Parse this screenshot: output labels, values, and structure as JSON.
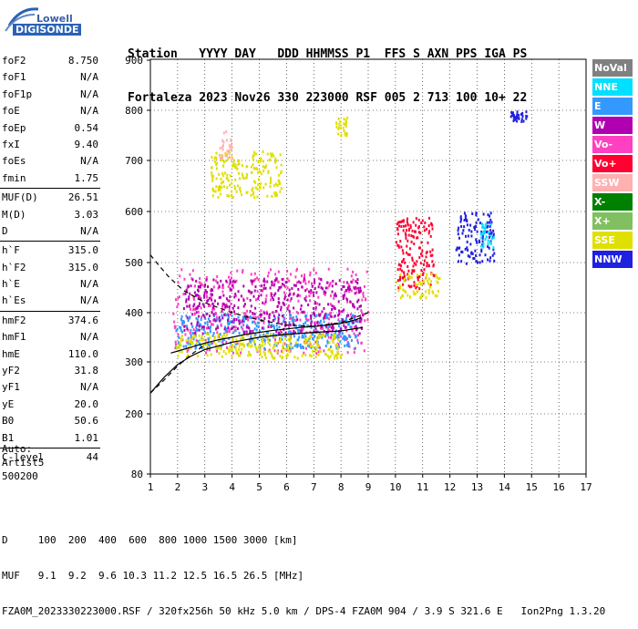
{
  "logo": {
    "line1": "Lowell",
    "line2": "DIGISONDE"
  },
  "header": {
    "labels": "Station   YYYY DAY   DDD HHMMSS P1  FFS S AXN PPS IGA PS",
    "values": "Fortaleza 2023 Nov26 330 223000 RSF 005 2 713 100 10+ 22"
  },
  "params": [
    {
      "k": "foF2",
      "v": "8.750"
    },
    {
      "k": "foF1",
      "v": "N/A"
    },
    {
      "k": "foF1p",
      "v": "N/A"
    },
    {
      "k": "foE",
      "v": "N/A"
    },
    {
      "k": "foEp",
      "v": "0.54"
    },
    {
      "k": "fxI",
      "v": "9.40"
    },
    {
      "k": "foEs",
      "v": "N/A"
    },
    {
      "k": "fmin",
      "v": "1.75"
    },
    {
      "sep": true
    },
    {
      "k": "MUF(D)",
      "v": "26.51"
    },
    {
      "k": "M(D)",
      "v": "3.03"
    },
    {
      "k": "D",
      "v": "N/A"
    },
    {
      "sep": true
    },
    {
      "k": "h`F",
      "v": "315.0"
    },
    {
      "k": "h`F2",
      "v": "315.0"
    },
    {
      "k": "h`E",
      "v": "N/A"
    },
    {
      "k": "h`Es",
      "v": "N/A"
    },
    {
      "sep": true
    },
    {
      "k": "hmF2",
      "v": "374.6"
    },
    {
      "k": "hmF1",
      "v": "N/A"
    },
    {
      "k": "hmE",
      "v": "110.0"
    },
    {
      "k": "yF2",
      "v": "31.8"
    },
    {
      "k": "yF1",
      "v": "N/A"
    },
    {
      "k": "yE",
      "v": "20.0"
    },
    {
      "k": "B0",
      "v": "50.6"
    },
    {
      "k": "B1",
      "v": "1.01"
    },
    {
      "sep": true
    },
    {
      "k": "C-level",
      "v": "44"
    }
  ],
  "auto": {
    "line1": "Auto:",
    "line2": "Artist5",
    "line3": "500200"
  },
  "legend": [
    {
      "label": "NoVal",
      "color": "#808080"
    },
    {
      "label": "NNE",
      "color": "#00e0ff"
    },
    {
      "label": "E",
      "color": "#3399ff"
    },
    {
      "label": "W",
      "color": "#b000b0"
    },
    {
      "label": "Vo-",
      "color": "#ff40c0"
    },
    {
      "label": "Vo+",
      "color": "#ff0030"
    },
    {
      "label": "SSW",
      "color": "#ffb0b0"
    },
    {
      "label": "X-",
      "color": "#008000"
    },
    {
      "label": "X+",
      "color": "#80c060"
    },
    {
      "label": "SSE",
      "color": "#e0e000"
    },
    {
      "label": "NNW",
      "color": "#2020e0"
    }
  ],
  "bottom": {
    "line1": "D     100  200  400  600  800 1000 1500 3000 [km]",
    "line2": "MUF   9.1  9.2  9.6 10.3 11.2 12.5 16.5 26.5 [MHz]",
    "line3": "FZA0M_2023330223000.RSF / 320fx256h 50 kHz 5.0 km / DPS-4 FZA0M 904 / 3.9 S 321.6 E   Ion2Png 1.3.20"
  },
  "chart_data": {
    "type": "scatter",
    "xlim": [
      1,
      17
    ],
    "ylim": [
      80,
      900
    ],
    "x_ticks": [
      1,
      2,
      3,
      4,
      5,
      6,
      7,
      8,
      9,
      10,
      11,
      12,
      13,
      14,
      15,
      16,
      17
    ],
    "y_ticks": [
      80,
      200,
      300,
      400,
      500,
      600,
      700,
      800,
      900
    ],
    "grid": true,
    "echo_clusters": [
      {
        "color": "#ff40c0",
        "x": [
          1.8,
          9.0
        ],
        "y": [
          320,
          490
        ]
      },
      {
        "color": "#3399ff",
        "x": [
          1.9,
          8.6
        ],
        "y": [
          330,
          400
        ]
      },
      {
        "color": "#b000b0",
        "x": [
          2.2,
          8.8
        ],
        "y": [
          360,
          470
        ]
      },
      {
        "color": "#e0e000",
        "x": [
          1.9,
          8.0
        ],
        "y": [
          310,
          360
        ]
      },
      {
        "color": "#ff0030",
        "x": [
          10.0,
          11.4
        ],
        "y": [
          450,
          590
        ]
      },
      {
        "color": "#e0e000",
        "x": [
          10.0,
          11.6
        ],
        "y": [
          430,
          480
        ]
      },
      {
        "color": "#2020e0",
        "x": [
          12.2,
          13.6
        ],
        "y": [
          500,
          600
        ]
      },
      {
        "color": "#00e0ff",
        "x": [
          13.1,
          13.6
        ],
        "y": [
          530,
          580
        ]
      },
      {
        "color": "#e0e000",
        "x": [
          3.2,
          5.8
        ],
        "y": [
          630,
          720
        ]
      },
      {
        "color": "#ffb0b0",
        "x": [
          3.5,
          4.0
        ],
        "y": [
          700,
          760
        ]
      },
      {
        "color": "#e0e000",
        "x": [
          7.8,
          8.2
        ],
        "y": [
          750,
          790
        ]
      },
      {
        "color": "#2020e0",
        "x": [
          14.2,
          14.8
        ],
        "y": [
          780,
          800
        ]
      }
    ],
    "traces": [
      {
        "name": "",
        "style": "solid",
        "x": [
          1.75,
          2.0,
          2.5,
          3.0,
          3.5,
          4.0,
          4.5,
          5.0,
          5.5,
          6.0,
          6.5,
          7.0,
          7.5,
          8.0,
          8.5,
          8.75
        ],
        "y": [
          318,
          322,
          330,
          338,
          345,
          350,
          356,
          360,
          364,
          367,
          370,
          372,
          375,
          378,
          385,
          390
        ]
      },
      {
        "name": "",
        "style": "solid",
        "x": [
          1.0,
          1.5,
          2.0,
          2.5,
          3.0,
          4.0,
          5.0,
          6.0,
          7.0,
          8.0,
          8.8
        ],
        "y": [
          240,
          270,
          295,
          312,
          325,
          340,
          350,
          356,
          360,
          363,
          370
        ]
      },
      {
        "name": "",
        "style": "dashed",
        "x": [
          1.0,
          1.3,
          1.7,
          2.2,
          3.0,
          4.0,
          5.0,
          6.0,
          7.0,
          8.0,
          9.0
        ],
        "y": [
          515,
          495,
          470,
          445,
          420,
          400,
          385,
          375,
          372,
          380,
          400
        ]
      },
      {
        "name": "",
        "style": "dashed",
        "x": [
          1.0,
          1.5,
          2.0,
          2.5,
          3.0
        ],
        "y": [
          240,
          265,
          292,
          315,
          335
        ]
      }
    ]
  }
}
